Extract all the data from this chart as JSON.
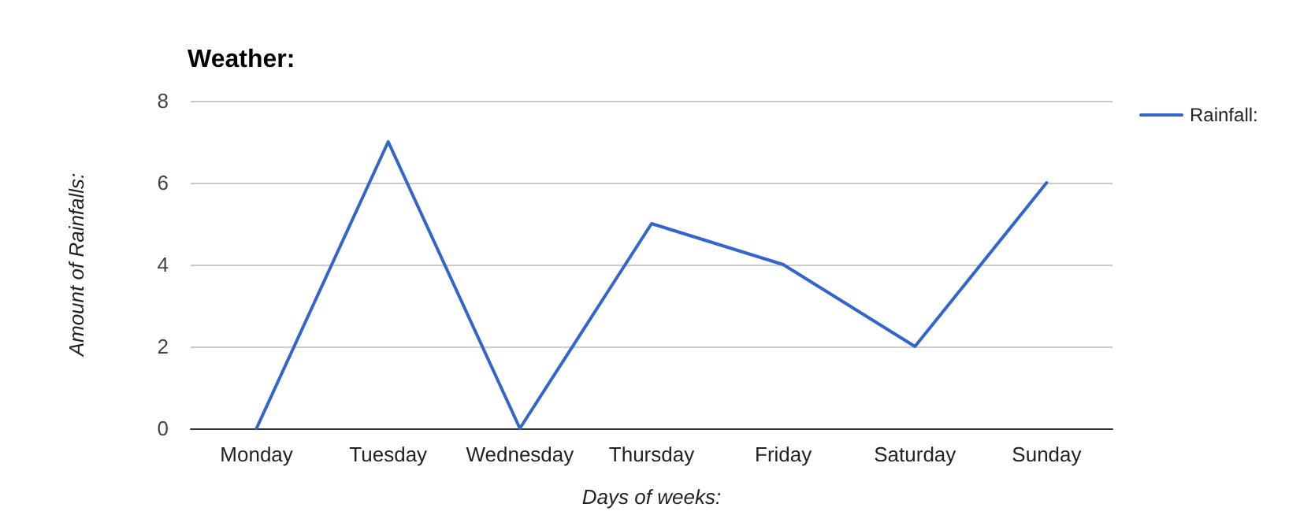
{
  "chart_data": {
    "type": "line",
    "title": "Weather:",
    "xlabel": "Days of weeks:",
    "ylabel": "Amount of Rainfalls:",
    "categories": [
      "Monday",
      "Tuesday",
      "Wednesday",
      "Thursday",
      "Friday",
      "Saturday",
      "Sunday"
    ],
    "series": [
      {
        "name": "Rainfall:",
        "color": "#3366cc",
        "values": [
          0,
          7,
          0,
          5,
          4,
          2,
          6
        ]
      }
    ],
    "ylim": [
      0,
      8
    ],
    "yticks": [
      0,
      2,
      4,
      6,
      8
    ],
    "grid": "y",
    "legend": "top right",
    "marker": "none",
    "line_style": "solid"
  }
}
